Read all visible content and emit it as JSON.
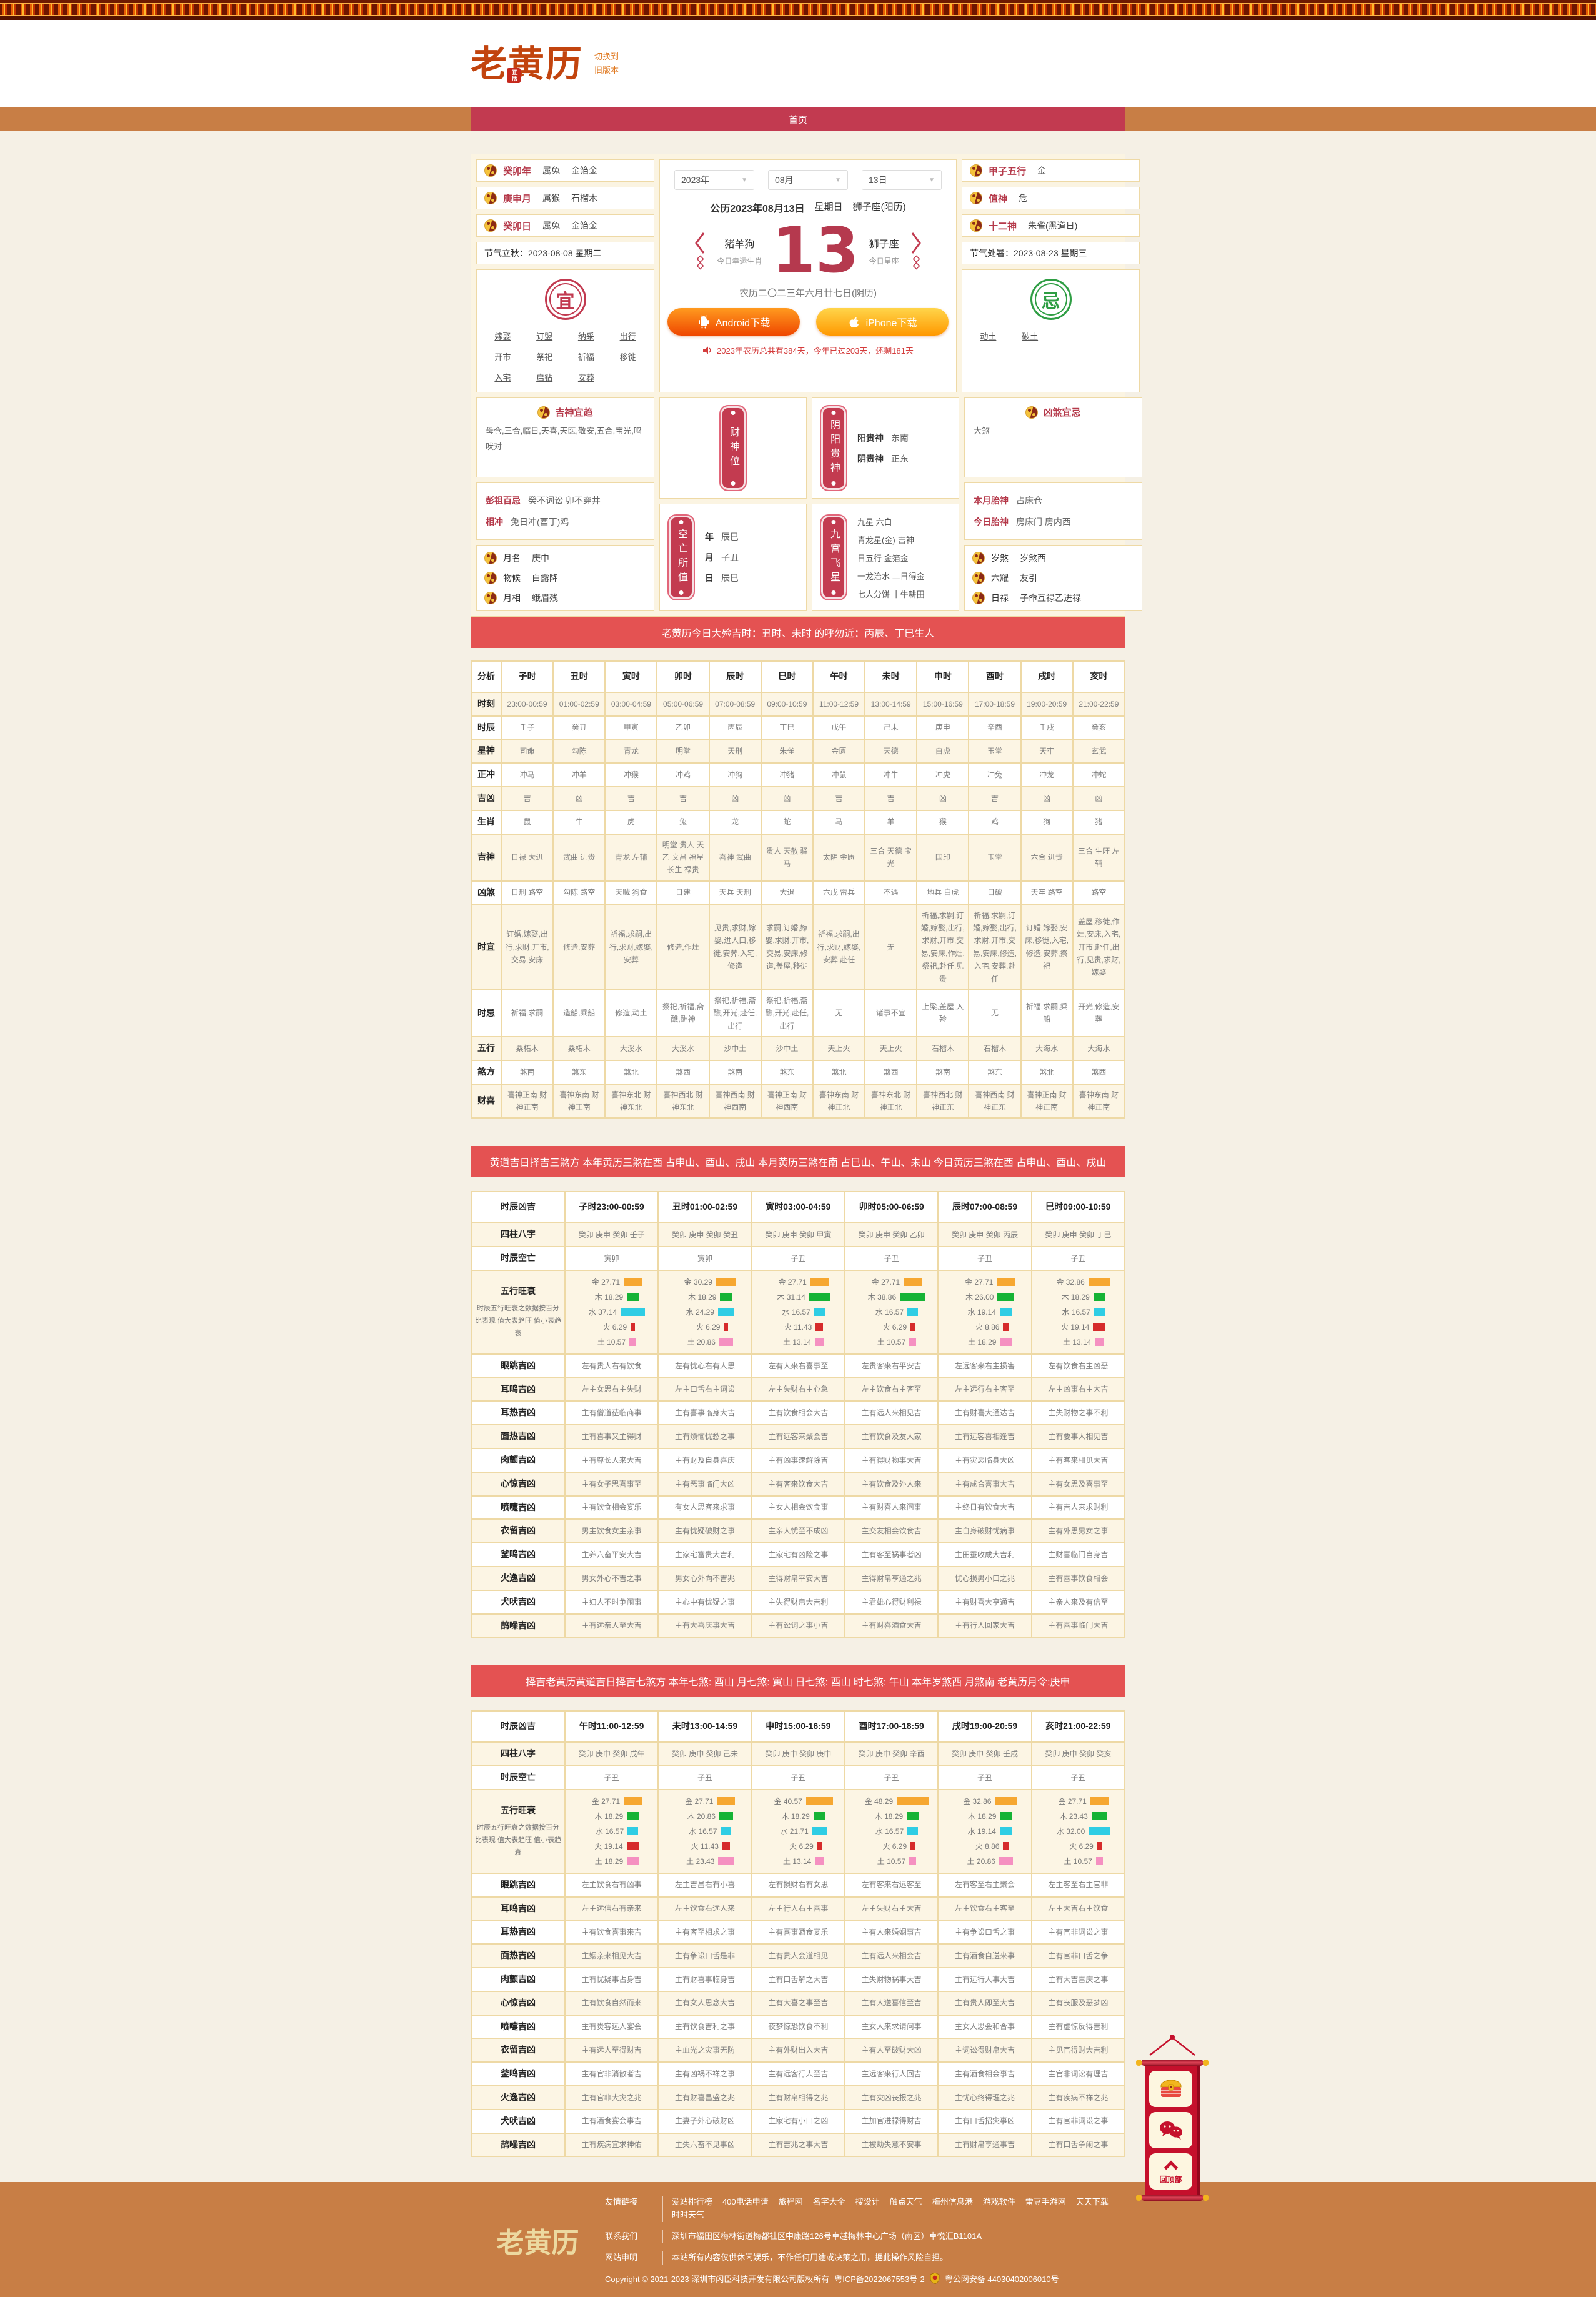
{
  "header": {
    "logo": "老黄历",
    "logo_seal": "正版",
    "switch_line1": "切换到",
    "switch_line2": "旧版本",
    "nav_home": "首页"
  },
  "calendar": {
    "selects": [
      "2023年",
      "08月",
      "13日"
    ],
    "left_rows": [
      {
        "label": "癸卯年",
        "v1": "属兔",
        "v2": "金箔金"
      },
      {
        "label": "庚申月",
        "v1": "属猴",
        "v2": "石榴木"
      },
      {
        "label": "癸卯日",
        "v1": "属兔",
        "v2": "金箔金"
      }
    ],
    "left_term": "节气立秋：2023-08-08 星期二",
    "yi_label": "宜",
    "yi_items": [
      "嫁娶",
      "订盟",
      "纳采",
      "出行",
      "开市",
      "祭祀",
      "祈福",
      "移徙",
      "入宅",
      "启钻",
      "安葬"
    ],
    "right_rows": [
      {
        "label": "甲子五行",
        "value": "金"
      },
      {
        "label": "值神",
        "value": "危"
      },
      {
        "label": "十二神",
        "value": "朱雀(黑道日)"
      }
    ],
    "right_term": "节气处暑：2023-08-23 星期三",
    "ji_label": "忌",
    "ji_items": [
      "动土",
      "破土"
    ],
    "greg_date": "公历2023年08月13日",
    "weekday": "星期日",
    "zodiac_note": "狮子座(阳历)",
    "lucky_animals": "猪羊狗",
    "lucky_label": "今日幸运生肖",
    "day_number": "13",
    "constellation": "狮子座",
    "constellation_label": "今日星座",
    "lunar_date": "农历二〇二三年六月廿七日(阴历)",
    "android_button": "Android下载",
    "iphone_button": "iPhone下载",
    "year_progress": "2023年农历总共有384天，今年已过203天，还剩181天"
  },
  "gods": {
    "jishen_title": "吉神宜趋",
    "jishen_text": "母仓,三合,临日,天喜,天医,敬安,五合,宝光,鸣吠对",
    "pengzu_label": "彭祖百忌",
    "pengzu_text": "癸不词讼 卯不穿井",
    "chong_label": "相冲",
    "chong_text": "兔日冲(酉丁)鸡",
    "left_rows": [
      {
        "label": "月名",
        "value": "庚申"
      },
      {
        "label": "物候",
        "value": "白露降"
      },
      {
        "label": "月相",
        "value": "蛾眉残"
      }
    ],
    "caishen_plaque": "财神位",
    "guishen_plaque": "阴阳贵神",
    "guishen_rows": [
      {
        "label": "阳贵神",
        "value": "东南"
      },
      {
        "label": "阴贵神",
        "value": "正东"
      }
    ],
    "kongwang_plaque": "空亡所值",
    "kongwang_rows": [
      {
        "label": "年",
        "value": "辰巳"
      },
      {
        "label": "月",
        "value": "子丑"
      },
      {
        "label": "日",
        "value": "辰巳"
      }
    ],
    "jiugong_plaque": "九宫飞星",
    "jiugong_lines": [
      "九星 六白",
      "青龙星(金)-吉神",
      "日五行 金箔金",
      "一龙治水 二日得金",
      "七人分饼 十牛耕田"
    ],
    "xiongsha_title": "凶煞宜忌",
    "xiongsha_text": "大煞",
    "taishen_rows": [
      {
        "label": "本月胎神",
        "value": "占床仓"
      },
      {
        "label": "今日胎神",
        "value": "房床门 房内西"
      }
    ],
    "right_rows": [
      {
        "label": "岁煞",
        "value": "岁煞西"
      },
      {
        "label": "六耀",
        "value": "友引"
      },
      {
        "label": "日禄",
        "value": "子命互禄乙进禄"
      }
    ]
  },
  "banner1": "老黄历今日大殓吉时：丑时、未时 的呼勿近：丙辰、丁巳生人",
  "hour_table": {
    "header": [
      "分析",
      "子时",
      "丑时",
      "寅时",
      "卯时",
      "辰时",
      "巳时",
      "午时",
      "未时",
      "申时",
      "酉时",
      "戌时",
      "亥时"
    ],
    "rows": [
      {
        "label": "时刻",
        "cells": [
          "23:00-00:59",
          "01:00-02:59",
          "03:00-04:59",
          "05:00-06:59",
          "07:00-08:59",
          "09:00-10:59",
          "11:00-12:59",
          "13:00-14:59",
          "15:00-16:59",
          "17:00-18:59",
          "19:00-20:59",
          "21:00-22:59"
        ]
      },
      {
        "label": "时辰",
        "cells": [
          "壬子",
          "癸丑",
          "甲寅",
          "乙卯",
          "丙辰",
          "丁巳",
          "戊午",
          "己未",
          "庚申",
          "辛酉",
          "壬戌",
          "癸亥"
        ]
      },
      {
        "label": "星神",
        "cells": [
          "司命",
          "勾陈",
          "青龙",
          "明堂",
          "天刑",
          "朱雀",
          "金匮",
          "天德",
          "白虎",
          "玉堂",
          "天牢",
          "玄武"
        ]
      },
      {
        "label": "正冲",
        "cells": [
          "冲马",
          "冲羊",
          "冲猴",
          "冲鸡",
          "冲狗",
          "冲猪",
          "冲鼠",
          "冲牛",
          "冲虎",
          "冲兔",
          "冲龙",
          "冲蛇"
        ]
      },
      {
        "label": "吉凶",
        "cells": [
          "吉",
          "凶",
          "吉",
          "吉",
          "凶",
          "凶",
          "吉",
          "吉",
          "凶",
          "吉",
          "凶",
          "凶"
        ]
      },
      {
        "label": "生肖",
        "cells": [
          "鼠",
          "牛",
          "虎",
          "兔",
          "龙",
          "蛇",
          "马",
          "羊",
          "猴",
          "鸡",
          "狗",
          "猪"
        ]
      },
      {
        "label": "吉神",
        "cells": [
          "日禄 大进",
          "武曲 进贵",
          "青龙 左辅",
          "明堂 贵人 天乙 文昌 福星 长生 禄贵",
          "喜神 武曲",
          "贵人 天赦 驿马",
          "太阴 金匮",
          "三合 天德 宝光",
          "国印",
          "玉堂",
          "六合 进贵",
          "三合 生旺 左辅"
        ]
      },
      {
        "label": "凶煞",
        "cells": [
          "日刑 路空",
          "勾陈 路空",
          "天贼 狗食",
          "日建",
          "天兵 天刑",
          "大退",
          "六戊 雷兵",
          "不遇",
          "地兵 白虎",
          "日破",
          "天牢 路空",
          "路空"
        ]
      },
      {
        "label": "时宜",
        "cells": [
          "订婚,嫁娶,出行,求财,开市,交易,安床",
          "修造,安葬",
          "祈福,求嗣,出行,求财,嫁娶,安葬",
          "修造,作灶",
          "见贵,求财,嫁娶,进人口,移徙,安葬,入宅,修造",
          "求嗣,订婚,嫁娶,求财,开市,交易,安床,修造,盖屋,移徙",
          "祈福,求嗣,出行,求财,嫁娶,安葬,赴任",
          "无",
          "祈福,求嗣,订婚,嫁娶,出行,求财,开市,交易,安床,作灶,祭祀,赴任,见贵",
          "祈福,求嗣,订婚,嫁娶,出行,求财,开市,交易,安床,修造,入宅,安葬,赴任",
          "订婚,嫁娶,安床,移徙,入宅,修造,安葬,祭祀",
          "盖屋,移徙,作灶,安床,入宅,开市,赴任,出行,见贵,求财,嫁娶"
        ]
      },
      {
        "label": "时忌",
        "cells": [
          "祈福,求嗣",
          "造船,乘船",
          "修造,动土",
          "祭祀,祈福,斋醮,酬神",
          "祭祀,祈福,斋醮,开光,赴任,出行",
          "祭祀,祈福,斋醮,开光,赴任,出行",
          "无",
          "诸事不宜",
          "上梁,盖屋,入殓",
          "无",
          "祈福,求嗣,乘船",
          "开光,修造,安葬"
        ]
      },
      {
        "label": "五行",
        "cells": [
          "桑柘木",
          "桑柘木",
          "大溪水",
          "大溪水",
          "沙中土",
          "沙中土",
          "天上火",
          "天上火",
          "石榴木",
          "石榴木",
          "大海水",
          "大海水"
        ]
      },
      {
        "label": "煞方",
        "cells": [
          "煞南",
          "煞东",
          "煞北",
          "煞西",
          "煞南",
          "煞东",
          "煞北",
          "煞西",
          "煞南",
          "煞东",
          "煞北",
          "煞西"
        ]
      },
      {
        "label": "财喜",
        "cells": [
          "喜神正南 财神正南",
          "喜神东南 财神正南",
          "喜神东北 财神东北",
          "喜神西北 财神东北",
          "喜神西南 财神西南",
          "喜神正南 财神西南",
          "喜神东南 财神正北",
          "喜神东北 财神正北",
          "喜神西北 财神正东",
          "喜神西南 财神正东",
          "喜神正南 财神正南",
          "喜神东南 财神正南"
        ]
      }
    ]
  },
  "banner2": "黄道吉日择吉三煞方 本年黄历三煞在西 占申山、酉山、戌山 本月黄历三煞在南 占巳山、午山、未山 今日黄历三煞在西 占申山、酉山、戌山",
  "wuxing": {
    "elements": [
      "金",
      "木",
      "水",
      "火",
      "土"
    ],
    "colors": [
      "#f6a731",
      "#16b335",
      "#2fcde4",
      "#d62b2b",
      "#f590c1"
    ],
    "label": "五行旺衰",
    "sub": "时辰五行旺衰之数据按百分比表现 值大表趋旺 值小表趋衰"
  },
  "am_table": {
    "header": [
      "时辰凶吉",
      "子时23:00-00:59",
      "丑时01:00-02:59",
      "寅时03:00-04:59",
      "卯时05:00-06:59",
      "辰时07:00-08:59",
      "巳时09:00-10:59"
    ],
    "rows": [
      {
        "label": "四柱八字",
        "cells": [
          "癸卯 庚申 癸卯 壬子",
          "癸卯 庚申 癸卯 癸丑",
          "癸卯 庚申 癸卯 甲寅",
          "癸卯 庚申 癸卯 乙卯",
          "癸卯 庚申 癸卯 丙辰",
          "癸卯 庚申 癸卯 丁巳"
        ]
      },
      {
        "label": "时辰空亡",
        "cells": [
          "寅卯",
          "寅卯",
          "子丑",
          "子丑",
          "子丑",
          "子丑"
        ]
      },
      {
        "label": "五行旺衰",
        "wuxing": true,
        "bars": [
          [
            27.71,
            18.29,
            37.14,
            6.29,
            10.57
          ],
          [
            30.29,
            18.29,
            24.29,
            6.29,
            20.86
          ],
          [
            27.71,
            31.14,
            16.57,
            11.43,
            13.14
          ],
          [
            27.71,
            38.86,
            16.57,
            6.29,
            10.57
          ],
          [
            27.71,
            26.0,
            19.14,
            8.86,
            18.29
          ],
          [
            32.86,
            18.29,
            16.57,
            19.14,
            13.14
          ]
        ]
      },
      {
        "label": "眼跳吉凶",
        "cells": [
          "左有贵人右有饮食",
          "左有忧心右有人思",
          "左有人来右喜事至",
          "左贵客来右平安吉",
          "左远客来右主损害",
          "左有饮食右主凶恶"
        ]
      },
      {
        "label": "耳鸣吉凶",
        "cells": [
          "左主女思右主失财",
          "左主口舌右主词讼",
          "左主失财右主心急",
          "左主饮食右主客至",
          "左主远行右主客至",
          "左主凶事右主大吉"
        ]
      },
      {
        "label": "耳热吉凶",
        "cells": [
          "主有僧道莅临商事",
          "主有喜事临身大吉",
          "主有饮食相会大吉",
          "主有远人来相见吉",
          "主有财喜大通达吉",
          "主失财物之事不利"
        ]
      },
      {
        "label": "面热吉凶",
        "cells": [
          "主有喜事又主得财",
          "主有烦恼忧愁之事",
          "主有远客来聚会吉",
          "主有饮食及友人家",
          "主有远客喜相逢吉",
          "主有要事人相见吉"
        ]
      },
      {
        "label": "肉颤吉凶",
        "cells": [
          "主有尊长人来大吉",
          "主有财及自身喜庆",
          "主有凶事速解除吉",
          "主有得财物事大吉",
          "主有灾恶临身大凶",
          "主有客来相见大吉"
        ]
      },
      {
        "label": "心惊吉凶",
        "cells": [
          "主有女子思喜事至",
          "主有恶事临门大凶",
          "主有客来饮食大吉",
          "主有饮食及外人来",
          "主有成合喜事大吉",
          "主有女思及喜事至"
        ]
      },
      {
        "label": "喷嚏吉凶",
        "cells": [
          "主有饮食相会宴乐",
          "有女人思客来求事",
          "主女人相会饮食事",
          "主有财喜人来问事",
          "主终日有饮食大吉",
          "主有吉人来求财利"
        ]
      },
      {
        "label": "衣留吉凶",
        "cells": [
          "男主饮食女主亲事",
          "主有忧疑破财之事",
          "主亲人忧至不成凶",
          "主交友相会饮食吉",
          "主自身破财忧病事",
          "主有外思男女之事"
        ]
      },
      {
        "label": "釜鸣吉凶",
        "cells": [
          "主养六畜平安大吉",
          "主家宅富贵大吉利",
          "主家宅有凶险之事",
          "主有客至祸事者凶",
          "主田蚕收成大吉利",
          "主财喜临门自身吉"
        ]
      },
      {
        "label": "火逸吉凶",
        "cells": [
          "男女外心不吉之事",
          "男女心外向不吉兆",
          "主得财帛平安大吉",
          "主得财帛亨通之兆",
          "忧心损男小口之兆",
          "主有喜事饮食相会"
        ]
      },
      {
        "label": "犬吠吉凶",
        "cells": [
          "主妇人不时争闹事",
          "主心中有忧疑之事",
          "主失得财帛大吉利",
          "主君雄心得财利禄",
          "主有财喜大亨通吉",
          "主亲人来及有信至"
        ]
      },
      {
        "label": "鹊噪吉凶",
        "cells": [
          "主有远亲人至大吉",
          "主有大喜庆事大吉",
          "主有讼词之事小吉",
          "主有财喜酒食大吉",
          "主有行人回家大吉",
          "主有喜事临门大吉"
        ]
      }
    ]
  },
  "banner3": "择吉老黄历黄道吉日择吉七煞方  本年七煞: 酉山  月七煞: 寅山  日七煞: 酉山  时七煞: 午山  本年岁煞西  月煞南  老黄历月令:庚申",
  "pm_table": {
    "header": [
      "时辰凶吉",
      "午时11:00-12:59",
      "未时13:00-14:59",
      "申时15:00-16:59",
      "酉时17:00-18:59",
      "戌时19:00-20:59",
      "亥时21:00-22:59"
    ],
    "rows": [
      {
        "label": "四柱八字",
        "cells": [
          "癸卯 庚申 癸卯 戊午",
          "癸卯 庚申 癸卯 己未",
          "癸卯 庚申 癸卯 庚申",
          "癸卯 庚申 癸卯 辛酉",
          "癸卯 庚申 癸卯 壬戌",
          "癸卯 庚申 癸卯 癸亥"
        ]
      },
      {
        "label": "时辰空亡",
        "cells": [
          "子丑",
          "子丑",
          "子丑",
          "子丑",
          "子丑",
          "子丑"
        ]
      },
      {
        "label": "五行旺衰",
        "wuxing": true,
        "bars": [
          [
            27.71,
            18.29,
            16.57,
            19.14,
            18.29
          ],
          [
            27.71,
            20.86,
            16.57,
            11.43,
            23.43
          ],
          [
            40.57,
            18.29,
            21.71,
            6.29,
            13.14
          ],
          [
            48.29,
            18.29,
            16.57,
            6.29,
            10.57
          ],
          [
            32.86,
            18.29,
            19.14,
            8.86,
            20.86
          ],
          [
            27.71,
            23.43,
            32.0,
            6.29,
            10.57
          ]
        ]
      },
      {
        "label": "眼跳吉凶",
        "cells": [
          "左主饮食右有凶事",
          "左主吉昌右有小喜",
          "左有损财右有女思",
          "左有客来右远客至",
          "左有客至右主聚会",
          "左主客至右主官非"
        ]
      },
      {
        "label": "耳鸣吉凶",
        "cells": [
          "左主远信右有亲来",
          "左主饮食右远人来",
          "左主行人右主喜事",
          "左主失财右主大吉",
          "左主饮食右主客至",
          "左主大吉右主饮食"
        ]
      },
      {
        "label": "耳热吉凶",
        "cells": [
          "主有饮食喜事来吉",
          "主有客至相求之事",
          "主有喜事酒食宴乐",
          "主有人来婚姻事吉",
          "主有争讼口舌之事",
          "主有官非词讼之事"
        ]
      },
      {
        "label": "面热吉凶",
        "cells": [
          "主姻亲来相见大吉",
          "主有争讼口舌是非",
          "主有贵人会道相见",
          "主有远人来相会吉",
          "主有酒食自送来事",
          "主有官非口舌之争"
        ]
      },
      {
        "label": "肉颤吉凶",
        "cells": [
          "主有忧疑事占身吉",
          "主有财喜事临身吉",
          "主有口舌解之大吉",
          "主失财物祸事大吉",
          "主有远行人事大吉",
          "主有大吉喜庆之事"
        ]
      },
      {
        "label": "心惊吉凶",
        "cells": [
          "主有饮食自然而来",
          "主有女人思念大吉",
          "主有大喜之事至吉",
          "主有人送喜信至吉",
          "主有贵人即至大吉",
          "主有丧服及恶梦凶"
        ]
      },
      {
        "label": "喷嚏吉凶",
        "cells": [
          "主有贵客远人宴会",
          "主有饮食吉利之事",
          "夜梦惊恐饮食不利",
          "主女人来求请问事",
          "主女人思会和合事",
          "主有虚惊反得吉利"
        ]
      },
      {
        "label": "衣留吉凶",
        "cells": [
          "主有远人至得财吉",
          "主血光之灾事无防",
          "主有外财出入大吉",
          "主有人至破财大凶",
          "主词讼得财帛大吉",
          "主见官得财大吉利"
        ]
      },
      {
        "label": "釜鸣吉凶",
        "cells": [
          "主有官非消散者吉",
          "主有凶祸不祥之事",
          "主有远客行人至吉",
          "主远客来行人回吉",
          "主有酒食相会事吉",
          "主官非词讼有理吉"
        ]
      },
      {
        "label": "火逸吉凶",
        "cells": [
          "主有官非大灾之兆",
          "主有财喜昌盛之兆",
          "主有财帛相得之兆",
          "主有灾凶丧报之兆",
          "主忧心终得理之兆",
          "主有疾病不祥之兆"
        ]
      },
      {
        "label": "犬吠吉凶",
        "cells": [
          "主有酒食宴会事吉",
          "主妻子外心破财凶",
          "主家宅有小口之凶",
          "主加官进禄得财吉",
          "主有口舌招灾事凶",
          "主有官非词讼之事"
        ]
      },
      {
        "label": "鹊噪吉凶",
        "cells": [
          "主有疾病宜求神佑",
          "主失六畜不见事凶",
          "主有吉兆之事大吉",
          "主被劫失意不安事",
          "主有财帛亨通事吉",
          "主有口舌争闹之事"
        ]
      }
    ]
  },
  "floating": {
    "back_top": "回顶部"
  },
  "footer": {
    "logo": "老黄历",
    "rows": [
      {
        "label": "友情链接",
        "links": [
          "爱站排行榜",
          "400电话申请",
          "旅程网",
          "名字大全",
          "搜设计",
          "触点天气",
          "梅州信息港",
          "游戏软件",
          "雷豆手游网",
          "天天下载",
          "时时天气"
        ]
      },
      {
        "label": "联系我们",
        "text": "深圳市福田区梅林街道梅都社区中康路126号卓越梅林中心广场（南区）卓悦汇B1101A"
      },
      {
        "label": "网站申明",
        "text": "本站所有内容仅供休闲娱乐，不作任何用途或决策之用，据此操作风险自担。"
      }
    ],
    "copyright": "Copyright © 2021-2023 深圳市闪臣科技开发有限公司版权所有",
    "icp": "粤ICP备2022067553号-2",
    "police": "粤公网安备 44030402006010号"
  }
}
